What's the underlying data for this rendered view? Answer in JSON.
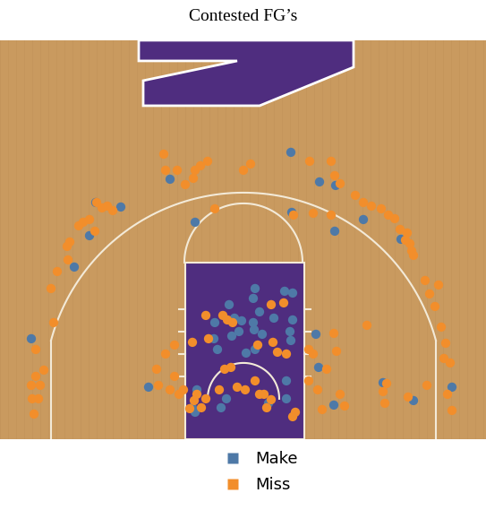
{
  "chart_data": {
    "type": "scatter",
    "title": "Contested FG’s",
    "xlim": [
      0,
      543
    ],
    "ylim": [
      490,
      45
    ],
    "tick_labels": false,
    "legend": "lower center",
    "series": [
      {
        "name": "Make",
        "color": "#4e79a7",
        "marker": "circle",
        "x": [
          325,
          190,
          107,
          135,
          100,
          83,
          218,
          326,
          357,
          375,
          374,
          406,
          448,
          318,
          327,
          285,
          283,
          256,
          290,
          262,
          270,
          283,
          306,
          327,
          240,
          259,
          267,
          284,
          293,
          324,
          325,
          353,
          239,
          243,
          275,
          285,
          35,
          356,
          166,
          220,
          215,
          253,
          300,
          320,
          320,
          373,
          428,
          462,
          505,
          218,
          247
        ],
        "y": [
          170,
          200,
          226,
          231,
          263,
          298,
          248,
          237,
          203,
          207,
          258,
          245,
          267,
          325,
          327,
          322,
          333,
          340,
          348,
          355,
          358,
          360,
          355,
          357,
          360,
          375,
          370,
          368,
          373,
          370,
          380,
          373,
          378,
          390,
          394,
          390,
          378,
          410,
          432,
          435,
          455,
          445,
          450,
          425,
          445,
          452,
          427,
          447,
          432,
          460,
          455
        ]
      },
      {
        "name": "Miss",
        "color": "#f28e2b",
        "marker": "circle",
        "x": [
          183,
          185,
          198,
          218,
          224,
          232,
          280,
          272,
          216,
          207,
          346,
          370,
          374,
          380,
          108,
          114,
          120,
          100,
          93,
          88,
          106,
          126,
          78,
          75,
          76,
          64,
          57,
          60,
          40,
          40,
          35,
          45,
          43,
          36,
          38,
          49,
          397,
          406,
          415,
          426,
          434,
          441,
          447,
          455,
          453,
          458,
          460,
          462,
          475,
          490,
          480,
          486,
          493,
          498,
          496,
          503,
          500,
          505,
          477,
          456,
          432,
          428,
          410,
          373,
          376,
          365,
          430,
          380,
          385,
          360,
          355,
          240,
          350,
          328,
          370,
          317,
          303,
          230,
          249,
          254,
          215,
          233,
          260,
          288,
          305,
          310,
          320,
          258,
          251,
          245,
          265,
          274,
          285,
          290,
          295,
          303,
          298,
          327,
          330,
          220,
          217,
          212,
          225,
          230,
          195,
          185,
          195,
          175,
          177,
          200,
          190,
          205,
          345,
          350,
          345
        ],
        "y": [
          172,
          190,
          190,
          190,
          185,
          180,
          183,
          190,
          199,
          206,
          180,
          180,
          196,
          205,
          226,
          232,
          230,
          245,
          248,
          252,
          258,
          235,
          270,
          275,
          290,
          303,
          322,
          360,
          390,
          420,
          430,
          430,
          445,
          445,
          462,
          413,
          218,
          226,
          230,
          233,
          240,
          244,
          256,
          260,
          268,
          272,
          280,
          285,
          313,
          318,
          328,
          342,
          365,
          383,
          400,
          405,
          440,
          458,
          430,
          443,
          428,
          437,
          363,
          372,
          392,
          412,
          450,
          440,
          453,
          457,
          435,
          233,
          238,
          240,
          240,
          338,
          340,
          352,
          352,
          357,
          382,
          378,
          360,
          385,
          382,
          393,
          395,
          410,
          412,
          435,
          432,
          435,
          425,
          440,
          440,
          446,
          455,
          465,
          460,
          440,
          447,
          456,
          455,
          445,
          385,
          395,
          420,
          412,
          430,
          440,
          435,
          435,
          390,
          395,
          425
        ]
      }
    ]
  }
}
